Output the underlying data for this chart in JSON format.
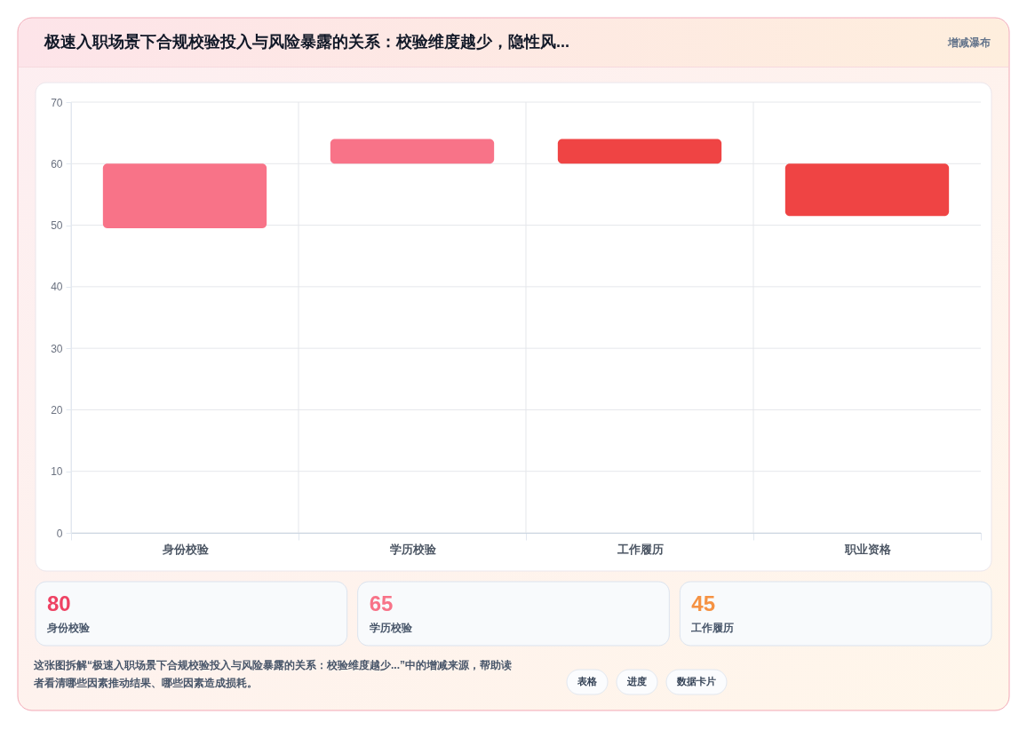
{
  "chart_data": [
    {
      "type": "bar",
      "title": "极速入职场景下合规校验投入与风险暴露的关系：校验维度越少，隐性风...",
      "subtitle": "增减瀑布",
      "categories": [
        "身份校验",
        "学历校验",
        "工作履历",
        "职业资格"
      ],
      "values": [
        10.5,
        4,
        4,
        8.5
      ],
      "base": [
        49.5,
        60,
        60,
        51.5
      ],
      "colors": [
        "#f87388",
        "#f87388",
        "#ef4444",
        "#ef4444"
      ],
      "ylim": [
        0,
        70
      ],
      "yticks": [
        0,
        10,
        20,
        30,
        40,
        50,
        60,
        70
      ],
      "grid": true,
      "annotations": [
        "这张图拆解“极速入职场景下合规校验投入与风险暴露的关系：校验维度越少...”中的增减来源，帮助读者看清哪些因素推动结果、哪些因素造成损耗。",
        "表格",
        "进度",
        "数据卡片"
      ]
    },
    {
      "type": "other",
      "annotations": [
        "80",
        "身份校验",
        "65",
        "学历校验",
        "45",
        "工作履历"
      ]
    }
  ]
}
